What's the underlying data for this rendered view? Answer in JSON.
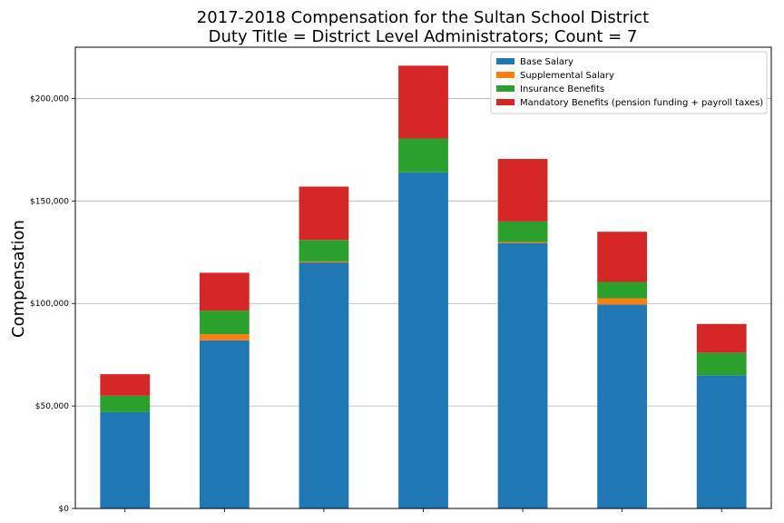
{
  "chart_data": {
    "type": "bar",
    "stacked": true,
    "title": "2017-2018 Compensation for the Sultan School District",
    "subtitle": "Duty Title = District Level Administrators; Count = 7",
    "xlabel": "",
    "ylabel": "Compensation",
    "ylim": [
      0,
      225000
    ],
    "yticks": [
      0,
      50000,
      100000,
      150000,
      200000
    ],
    "ytick_labels": [
      "$0",
      "$50,000",
      "$100,000",
      "$150,000",
      "$200,000"
    ],
    "grid": "horizontal",
    "legend_position": "top-right",
    "categories": [
      "",
      "",
      "",
      "",
      "",
      "",
      ""
    ],
    "series": [
      {
        "name": "Base Salary",
        "color": "#1f77b4",
        "values": [
          47000,
          82000,
          120000,
          164000,
          129500,
          99500,
          65000
        ]
      },
      {
        "name": "Supplemental Salary",
        "color": "#ff7f0e",
        "values": [
          0,
          3000,
          500,
          0,
          500,
          3000,
          0
        ]
      },
      {
        "name": "Insurance Benefits",
        "color": "#2ca02c",
        "values": [
          8000,
          11500,
          10500,
          16500,
          10000,
          8000,
          11000
        ]
      },
      {
        "name": "Mandatory Benefits (pension funding + payroll taxes)",
        "color": "#d62728",
        "values": [
          10500,
          18500,
          26000,
          35500,
          30500,
          24500,
          14000
        ]
      }
    ]
  }
}
